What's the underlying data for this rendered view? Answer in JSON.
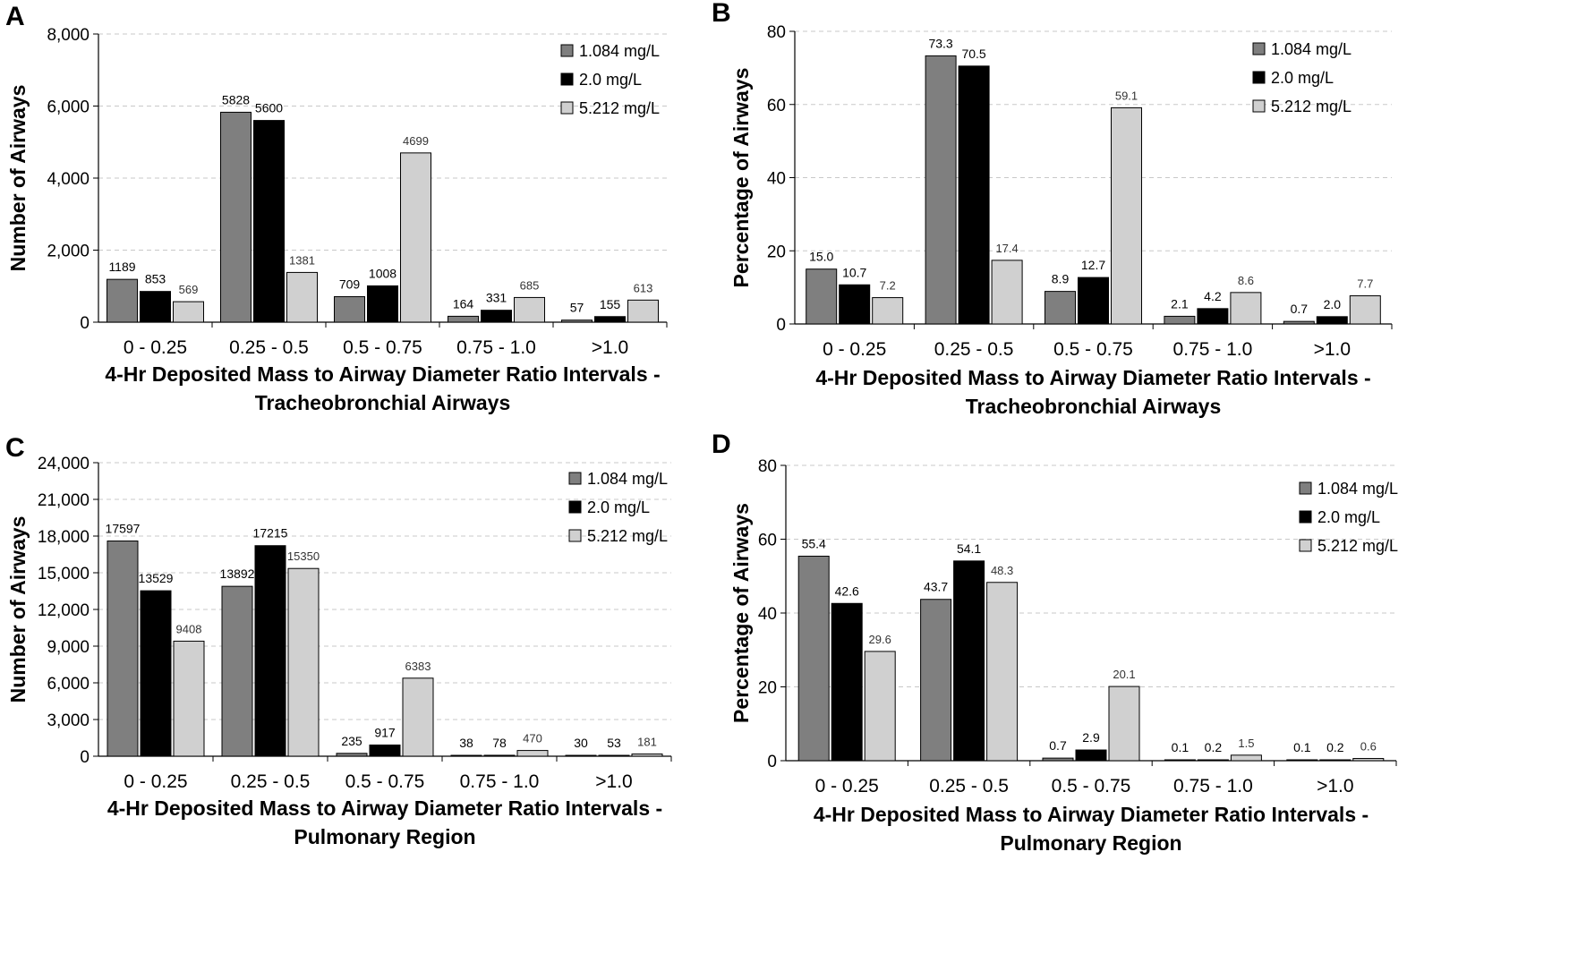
{
  "legend": [
    "1.084 mg/L",
    "2.0 mg/L",
    "5.212 mg/L"
  ],
  "colors": {
    "series_1": "#7f7f7f",
    "series_2": "#000000",
    "series_3": "#d0d0d0",
    "grid": "#c8c8c8",
    "axis": "#000000"
  },
  "chart_data": [
    {
      "id": "A",
      "letter": "A",
      "type": "bar",
      "categories": [
        "0 - 0.25",
        "0.25 - 0.5",
        "0.5 - 0.75",
        "0.75 - 1.0",
        ">1.0"
      ],
      "series": [
        {
          "name": "1.084 mg/L",
          "values": [
            1189,
            5828,
            709,
            164,
            57
          ],
          "labels": [
            "1189",
            "5828",
            "709",
            "164",
            "57"
          ]
        },
        {
          "name": "2.0 mg/L",
          "values": [
            853,
            5600,
            1008,
            331,
            155
          ],
          "labels": [
            "853",
            "5600",
            "1008",
            "331",
            "155"
          ]
        },
        {
          "name": "5.212 mg/L",
          "values": [
            569,
            1381,
            4699,
            685,
            613
          ],
          "labels": [
            "569",
            "1381",
            "4699",
            "685",
            "613"
          ]
        }
      ],
      "ylabel": "Number of Airways",
      "xlabel_line1": "4-Hr Deposited Mass to Airway Diameter Ratio Intervals -",
      "xlabel_line2": "Tracheobronchial Airways",
      "ylim": [
        0,
        8000
      ],
      "yticks": [
        0,
        2000,
        4000,
        6000,
        8000
      ],
      "ytick_labels": [
        "0",
        "2,000",
        "4,000",
        "6,000",
        "8,000"
      ],
      "grid": true,
      "legend_position": "top-right"
    },
    {
      "id": "B",
      "letter": "B",
      "type": "bar",
      "categories": [
        "0 - 0.25",
        "0.25 - 0.5",
        "0.5 - 0.75",
        "0.75 - 1.0",
        ">1.0"
      ],
      "series": [
        {
          "name": "1.084 mg/L",
          "values": [
            15.0,
            73.3,
            8.9,
            2.1,
            0.7
          ],
          "labels": [
            "15.0",
            "73.3",
            "8.9",
            "2.1",
            "0.7"
          ]
        },
        {
          "name": "2.0 mg/L",
          "values": [
            10.7,
            70.5,
            12.7,
            4.2,
            2.0
          ],
          "labels": [
            "10.7",
            "70.5",
            "12.7",
            "4.2",
            "2.0"
          ]
        },
        {
          "name": "5.212 mg/L",
          "values": [
            7.2,
            17.4,
            59.1,
            8.6,
            7.7
          ],
          "labels": [
            "7.2",
            "17.4",
            "59.1",
            "8.6",
            "7.7"
          ]
        }
      ],
      "ylabel": "Percentage of Airways",
      "xlabel_line1": "4-Hr Deposited Mass to Airway Diameter Ratio Intervals -",
      "xlabel_line2": "Tracheobronchial Airways",
      "ylim": [
        0,
        80
      ],
      "yticks": [
        0,
        20,
        40,
        60,
        80
      ],
      "ytick_labels": [
        "0",
        "20",
        "40",
        "60",
        "80"
      ],
      "grid": true,
      "legend_position": "top-right"
    },
    {
      "id": "C",
      "letter": "C",
      "type": "bar",
      "categories": [
        "0 - 0.25",
        "0.25 - 0.5",
        "0.5 - 0.75",
        "0.75 - 1.0",
        ">1.0"
      ],
      "series": [
        {
          "name": "1.084 mg/L",
          "values": [
            17597,
            13892,
            235,
            38,
            30
          ],
          "labels": [
            "17597",
            "13892",
            "235",
            "38",
            "30"
          ]
        },
        {
          "name": "2.0 mg/L",
          "values": [
            13529,
            17215,
            917,
            78,
            53
          ],
          "labels": [
            "13529",
            "17215",
            "917",
            "78",
            "53"
          ]
        },
        {
          "name": "5.212 mg/L",
          "values": [
            9408,
            15350,
            6383,
            470,
            181
          ],
          "labels": [
            "9408",
            "15350",
            "6383",
            "470",
            "181"
          ]
        }
      ],
      "ylabel": "Number of Airways",
      "xlabel_line1": "4-Hr Deposited Mass to Airway Diameter Ratio Intervals -",
      "xlabel_line2": "Pulmonary Region",
      "ylim": [
        0,
        24000
      ],
      "yticks": [
        0,
        3000,
        6000,
        9000,
        12000,
        15000,
        18000,
        21000,
        24000
      ],
      "ytick_labels": [
        "0",
        "3,000",
        "6,000",
        "9,000",
        "12,000",
        "15,000",
        "18,000",
        "21,000",
        "24,000"
      ],
      "grid": true,
      "legend_position": "top-right"
    },
    {
      "id": "D",
      "letter": "D",
      "type": "bar",
      "categories": [
        "0 - 0.25",
        "0.25 - 0.5",
        "0.5 - 0.75",
        "0.75 - 1.0",
        ">1.0"
      ],
      "series": [
        {
          "name": "1.084 mg/L",
          "values": [
            55.4,
            43.7,
            0.7,
            0.1,
            0.1
          ],
          "labels": [
            "55.4",
            "43.7",
            "0.7",
            "0.1",
            "0.1"
          ]
        },
        {
          "name": "2.0 mg/L",
          "values": [
            42.6,
            54.1,
            2.9,
            0.2,
            0.2
          ],
          "labels": [
            "42.6",
            "54.1",
            "2.9",
            "0.2",
            "0.2"
          ]
        },
        {
          "name": "5.212 mg/L",
          "values": [
            29.6,
            48.3,
            20.1,
            1.5,
            0.6
          ],
          "labels": [
            "29.6",
            "48.3",
            "20.1",
            "1.5",
            "0.6"
          ]
        }
      ],
      "ylabel": "Percentage of Airways",
      "xlabel_line1": "4-Hr Deposited Mass to Airway Diameter Ratio Intervals -",
      "xlabel_line2": "Pulmonary Region",
      "ylim": [
        0,
        80
      ],
      "yticks": [
        0,
        20,
        40,
        60,
        80
      ],
      "ytick_labels": [
        "0",
        "20",
        "40",
        "60",
        "80"
      ],
      "grid": true,
      "legend_position": "top-right"
    }
  ]
}
